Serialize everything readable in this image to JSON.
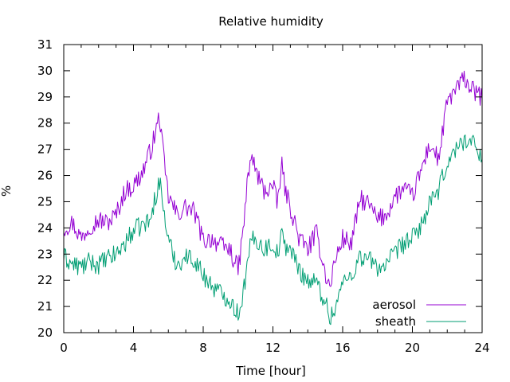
{
  "chart_data": {
    "type": "line",
    "title": "Relative humidity",
    "xlabel": "Time [hour]",
    "ylabel": "%",
    "xlim": [
      0,
      24
    ],
    "ylim": [
      20,
      31
    ],
    "xticks": [
      0,
      4,
      8,
      12,
      16,
      20,
      24
    ],
    "yticks": [
      20,
      21,
      22,
      23,
      24,
      25,
      26,
      27,
      28,
      29,
      30,
      31
    ],
    "grid": false,
    "legend_position": "bottom-right",
    "series": [
      {
        "name": "aerosol",
        "color": "#9400d3",
        "x": [
          0,
          0.5,
          1,
          1.5,
          2,
          2.5,
          3,
          3.5,
          4,
          4.5,
          5,
          5.25,
          5.5,
          5.75,
          6,
          6.5,
          7,
          7.5,
          8,
          8.5,
          9,
          9.5,
          10,
          10.25,
          10.5,
          10.75,
          11,
          11.5,
          12,
          12.25,
          12.5,
          12.75,
          13,
          13.5,
          14,
          14.5,
          15,
          15.25,
          15.5,
          16,
          16.5,
          17,
          17.5,
          18,
          18.5,
          19,
          19.5,
          20,
          20.5,
          21,
          21.5,
          22,
          22.5,
          23,
          23.5,
          24
        ],
        "y": [
          24.0,
          24.2,
          23.6,
          24.1,
          24.3,
          24.2,
          24.5,
          25.4,
          25.6,
          26.1,
          27.0,
          27.6,
          28.3,
          26.5,
          25.2,
          24.5,
          24.8,
          24.6,
          23.5,
          23.6,
          23.3,
          23.2,
          22.4,
          23.6,
          25.5,
          26.8,
          26.2,
          25.4,
          25.6,
          24.9,
          26.4,
          25.3,
          24.8,
          23.6,
          23.2,
          23.8,
          22.3,
          21.7,
          22.6,
          23.6,
          23.4,
          25.1,
          24.9,
          24.3,
          24.5,
          25.2,
          25.5,
          25.2,
          26.2,
          27.2,
          26.6,
          28.8,
          29.3,
          29.7,
          29.2,
          29.0
        ]
      },
      {
        "name": "sheath",
        "color": "#009e73",
        "x": [
          0,
          0.5,
          1,
          1.5,
          2,
          2.5,
          3,
          3.5,
          4,
          4.5,
          5,
          5.25,
          5.5,
          5.75,
          6,
          6.5,
          7,
          7.5,
          8,
          8.5,
          9,
          9.5,
          10,
          10.25,
          10.5,
          10.75,
          11,
          11.5,
          12,
          12.25,
          12.5,
          12.75,
          13,
          13.5,
          14,
          14.5,
          15,
          15.25,
          15.5,
          16,
          16.5,
          17,
          17.5,
          18,
          18.5,
          19,
          19.5,
          20,
          20.5,
          21,
          21.5,
          22,
          22.5,
          23,
          23.5,
          24
        ],
        "y": [
          22.9,
          22.6,
          22.5,
          22.7,
          22.6,
          22.8,
          23.0,
          23.4,
          23.9,
          24.1,
          24.3,
          25.2,
          25.8,
          24.6,
          23.5,
          22.6,
          22.9,
          22.8,
          22.2,
          21.8,
          21.5,
          21.3,
          20.7,
          21.4,
          22.4,
          23.5,
          23.6,
          23.2,
          23.4,
          23.0,
          23.7,
          23.3,
          23.2,
          22.4,
          22.0,
          21.9,
          21.2,
          20.6,
          20.8,
          21.9,
          22.2,
          22.9,
          22.8,
          22.5,
          22.6,
          23.0,
          23.4,
          23.6,
          24.1,
          24.9,
          25.4,
          26.5,
          27.0,
          27.4,
          27.2,
          26.8
        ]
      }
    ]
  }
}
